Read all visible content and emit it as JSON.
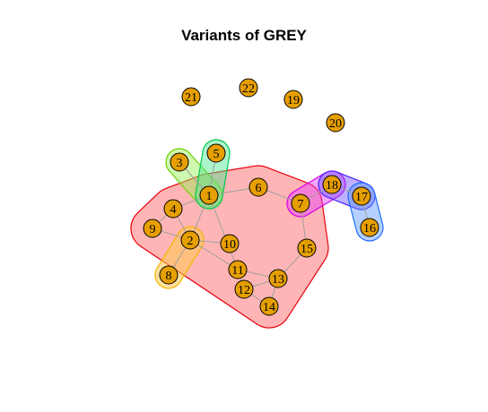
{
  "title": "Variants of GREY",
  "colors": {
    "node_fill": "#E69F00",
    "node_stroke": "#000000",
    "edge": "#a0a0a0"
  },
  "nodes": [
    "1",
    "2",
    "3",
    "4",
    "5",
    "6",
    "7",
    "8",
    "9",
    "10",
    "11",
    "12",
    "13",
    "14",
    "15",
    "16",
    "17",
    "18",
    "19",
    "20",
    "21",
    "22"
  ],
  "edges": [
    [
      "1",
      "3"
    ],
    [
      "1",
      "5"
    ],
    [
      "1",
      "4"
    ],
    [
      "1",
      "6"
    ],
    [
      "1",
      "2"
    ],
    [
      "1",
      "11"
    ],
    [
      "2",
      "4"
    ],
    [
      "2",
      "9"
    ],
    [
      "2",
      "8"
    ],
    [
      "2",
      "10"
    ],
    [
      "2",
      "11"
    ],
    [
      "4",
      "9"
    ],
    [
      "6",
      "7"
    ],
    [
      "7",
      "18"
    ],
    [
      "7",
      "15"
    ],
    [
      "15",
      "13"
    ],
    [
      "11",
      "12"
    ],
    [
      "11",
      "13"
    ],
    [
      "12",
      "14"
    ],
    [
      "13",
      "14"
    ],
    [
      "12",
      "13"
    ],
    [
      "18",
      "17"
    ],
    [
      "17",
      "16"
    ]
  ],
  "groups": [
    {
      "name": "red",
      "fill": "rgba(255,90,90,0.45)",
      "stroke": "#e8000b",
      "members": [
        "1",
        "2",
        "4",
        "6",
        "7",
        "9",
        "10",
        "11",
        "12",
        "13",
        "14",
        "15"
      ]
    },
    {
      "name": "lightgreen",
      "fill": "rgba(150,240,80,0.45)",
      "stroke": "#6cd400",
      "members": [
        "1",
        "3"
      ]
    },
    {
      "name": "green",
      "fill": "rgba(70,230,140,0.45)",
      "stroke": "#00c850",
      "members": [
        "1",
        "5"
      ]
    },
    {
      "name": "orange",
      "fill": "rgba(255,200,80,0.55)",
      "stroke": "#f5b400",
      "members": [
        "2",
        "8"
      ]
    },
    {
      "name": "magenta",
      "fill": "rgba(230,60,255,0.45)",
      "stroke": "#d400e8",
      "members": [
        "7",
        "18"
      ]
    },
    {
      "name": "purple",
      "fill": "rgba(110,80,255,0.45)",
      "stroke": "#4b20ff",
      "members": [
        "18",
        "17"
      ]
    },
    {
      "name": "blue",
      "fill": "rgba(90,150,255,0.45)",
      "stroke": "#1f6bff",
      "members": [
        "17",
        "16"
      ]
    }
  ]
}
